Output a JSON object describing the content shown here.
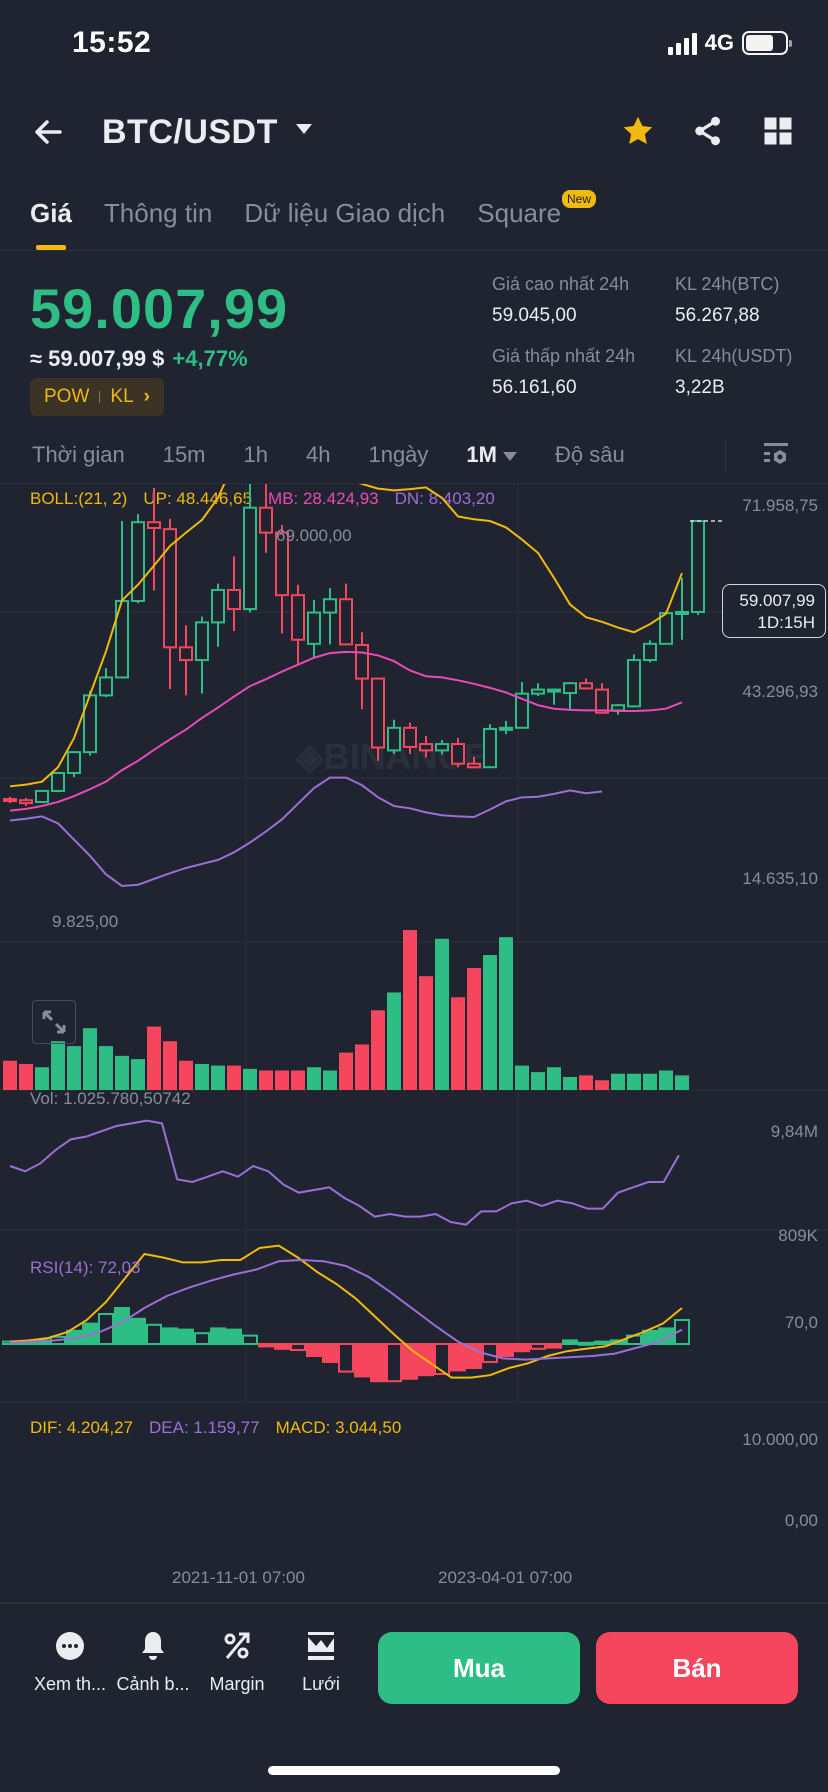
{
  "status_bar": {
    "time": "15:52",
    "network": "4G"
  },
  "header": {
    "pair": "BTC/USDT",
    "icons": [
      "back-arrow-icon",
      "caret-down-icon",
      "star-icon",
      "share-icon",
      "grid-icon"
    ]
  },
  "tabs": [
    {
      "label": "Giá",
      "active": true
    },
    {
      "label": "Thông tin",
      "active": false
    },
    {
      "label": "Dữ liệu Giao dịch",
      "active": false
    },
    {
      "label": "Square",
      "active": false,
      "badge": "New"
    }
  ],
  "price": {
    "last": "59.007,99",
    "usd_equiv": "≈ 59.007,99 $",
    "change_pct": "+4,77%",
    "tags": [
      "POW",
      "KL"
    ]
  },
  "stats": {
    "high_label": "Giá cao nhất 24h",
    "high_value": "59.045,00",
    "low_label": "Giá thấp nhất 24h",
    "low_value": "56.161,60",
    "vol_btc_label": "KL 24h(BTC)",
    "vol_btc_value": "56.267,88",
    "vol_usdt_label": "KL 24h(USDT)",
    "vol_usdt_value": "3,22B"
  },
  "intervals": {
    "items": [
      {
        "label": "Thời gian",
        "active": false
      },
      {
        "label": "15m",
        "active": false
      },
      {
        "label": "1h",
        "active": false
      },
      {
        "label": "4h",
        "active": false
      },
      {
        "label": "1ngày",
        "active": false
      },
      {
        "label": "1M",
        "active": true,
        "dropdown": true
      },
      {
        "label": "Độ sâu",
        "active": false
      }
    ]
  },
  "indicators": {
    "boll": {
      "label": "BOLL:(21, 2)",
      "up": "UP: 48.446,65",
      "mb": "MB: 28.424,93",
      "dn": "DN: 8.403,20"
    },
    "vol": {
      "label": "Vol: 1.025.780,50742"
    },
    "rsi": {
      "label": "RSI(14): 72,03"
    },
    "macd": {
      "dif": "DIF: 4.204,27",
      "dea": "DEA: 1.159,77",
      "macd": "MACD: 3.044,50"
    }
  },
  "axes": {
    "price_top": "71.958,75",
    "price_mid": "43.296,93",
    "price_low": "14.635,10",
    "high_marker": "69.000,00",
    "low_marker": "9.825,00",
    "current_price": "59.007,99",
    "countdown": "1D:15H",
    "vol_top": "9,84M",
    "vol_bottom": "809K",
    "rsi_level": "70,0",
    "macd_top": "10.000,00",
    "macd_zero": "0,00",
    "time_labels": [
      "2021-11-01 07:00",
      "2023-04-01 07:00"
    ]
  },
  "colors": {
    "up": "#2ebd85",
    "down": "#f6465d",
    "boll_up": "#f0b90b",
    "boll_mb": "#e84bb5",
    "boll_dn": "#9b6fd6",
    "accent": "#f0b90b",
    "bg": "#1f2430"
  },
  "chart_data": {
    "type": "candlestick",
    "interval": "1M",
    "candles": [
      {
        "o": 11,
        "h": 11.4,
        "l": 10.3,
        "c": 10.8
      },
      {
        "o": 10.8,
        "h": 11.2,
        "l": 9.8,
        "c": 10.3
      },
      {
        "o": 10.5,
        "h": 12.6,
        "l": 10.3,
        "c": 12.4
      },
      {
        "o": 12.4,
        "h": 15.6,
        "l": 12.2,
        "c": 15.5
      },
      {
        "o": 15.5,
        "h": 19.3,
        "l": 14.8,
        "c": 19.1
      },
      {
        "o": 19.1,
        "h": 29.7,
        "l": 18.5,
        "c": 28.9
      },
      {
        "o": 28.9,
        "h": 33.6,
        "l": 28.6,
        "c": 32.0
      },
      {
        "o": 32.0,
        "h": 59.0,
        "l": 32.0,
        "c": 45.2
      },
      {
        "o": 45.2,
        "h": 60.2,
        "l": 44.8,
        "c": 58.8
      },
      {
        "o": 58.8,
        "h": 64.7,
        "l": 47.0,
        "c": 57.8
      },
      {
        "o": 57.6,
        "h": 59.4,
        "l": 30.0,
        "c": 37.2
      },
      {
        "o": 37.2,
        "h": 41.0,
        "l": 28.9,
        "c": 35.0
      },
      {
        "o": 35.0,
        "h": 42.5,
        "l": 29.2,
        "c": 41.5
      },
      {
        "o": 41.5,
        "h": 48.2,
        "l": 37.3,
        "c": 47.1
      },
      {
        "o": 47.1,
        "h": 52.9,
        "l": 40.0,
        "c": 43.8
      },
      {
        "o": 43.8,
        "h": 67.0,
        "l": 43.2,
        "c": 61.3
      },
      {
        "o": 61.3,
        "h": 69.0,
        "l": 53.5,
        "c": 57.0
      },
      {
        "o": 57.0,
        "h": 58.3,
        "l": 39.6,
        "c": 46.2
      },
      {
        "o": 46.2,
        "h": 48.0,
        "l": 34.3,
        "c": 38.5
      },
      {
        "o": 37.8,
        "h": 45.4,
        "l": 35.5,
        "c": 43.2
      },
      {
        "o": 43.2,
        "h": 47.4,
        "l": 37.7,
        "c": 45.5
      },
      {
        "o": 45.5,
        "h": 48.2,
        "l": 37.6,
        "c": 37.7
      },
      {
        "o": 37.6,
        "h": 39.8,
        "l": 26.5,
        "c": 31.8
      },
      {
        "o": 31.8,
        "h": 31.8,
        "l": 17.6,
        "c": 19.9
      },
      {
        "o": 19.4,
        "h": 24.7,
        "l": 18.8,
        "c": 23.3
      },
      {
        "o": 23.3,
        "h": 24.2,
        "l": 18.8,
        "c": 20.0
      },
      {
        "o": 20.5,
        "h": 21.9,
        "l": 18.2,
        "c": 19.4
      },
      {
        "o": 19.4,
        "h": 21.2,
        "l": 18.7,
        "c": 20.5
      },
      {
        "o": 20.5,
        "h": 21.6,
        "l": 16.5,
        "c": 17.1
      },
      {
        "o": 17.1,
        "h": 18.3,
        "l": 16.9,
        "c": 16.5
      },
      {
        "o": 16.5,
        "h": 23.9,
        "l": 16.5,
        "c": 23.1
      },
      {
        "o": 23.1,
        "h": 24.5,
        "l": 22.2,
        "c": 23.3
      },
      {
        "o": 23.3,
        "h": 31.2,
        "l": 24.4,
        "c": 29.2
      },
      {
        "o": 29.2,
        "h": 31.0,
        "l": 28.8,
        "c": 29.9
      },
      {
        "o": 29.9,
        "h": 30.1,
        "l": 27.3,
        "c": 29.9
      },
      {
        "o": 29.3,
        "h": 31.2,
        "l": 26.5,
        "c": 31.0
      },
      {
        "o": 31.0,
        "h": 31.8,
        "l": 29.9,
        "c": 30.1
      },
      {
        "o": 29.9,
        "h": 31.0,
        "l": 27.5,
        "c": 25.9
      },
      {
        "o": 26.3,
        "h": 27.4,
        "l": 25.6,
        "c": 27.2
      },
      {
        "o": 27.0,
        "h": 36.0,
        "l": 26.8,
        "c": 35.0
      },
      {
        "o": 35.0,
        "h": 38.4,
        "l": 34.6,
        "c": 37.8
      },
      {
        "o": 37.8,
        "h": 43.4,
        "l": 40.2,
        "c": 43.1
      },
      {
        "o": 43.1,
        "h": 49.2,
        "l": 38.5,
        "c": 43.3
      },
      {
        "o": 43.3,
        "h": 59.0,
        "l": 42.8,
        "c": 59.0
      }
    ],
    "boll_up": [
      13.2,
      13.5,
      14.0,
      16.5,
      21.5,
      29.0,
      36.5,
      45.3,
      48.0,
      51.3,
      54.7,
      57.0,
      59.2,
      63.0,
      69.2,
      70.0,
      70.2,
      70.0,
      69.5,
      68.5,
      67.4,
      66.3,
      65.4,
      64.6,
      64.3,
      64.5,
      64.8,
      63.0,
      59.8,
      59.3,
      59.0,
      57.9,
      55.8,
      53.5,
      49.2,
      44.6,
      42.4,
      41.6,
      40.6,
      39.8,
      41.2,
      43.0,
      50.0
    ],
    "boll_mb": [
      9.0,
      9.3,
      9.8,
      10.5,
      11.5,
      12.7,
      14.0,
      16.0,
      17.6,
      19.5,
      21.3,
      23.0,
      25.0,
      26.8,
      28.7,
      30.5,
      31.7,
      33.0,
      34.2,
      35.4,
      36.2,
      36.4,
      36.3,
      35.8,
      34.8,
      33.2,
      32.2,
      32.0,
      31.5,
      30.9,
      30.2,
      29.4,
      28.3,
      27.2,
      26.6,
      26.4,
      26.3,
      26.3,
      26.2,
      26.2,
      26.3,
      26.6,
      27.7
    ],
    "boll_dn": [
      7.3,
      7.6,
      8.0,
      6.8,
      4.0,
      1.2,
      -2.0,
      -4.0,
      -3.8,
      -2.8,
      -1.8,
      -0.9,
      -0.2,
      0.5,
      1.8,
      3.5,
      5.4,
      7.5,
      10.2,
      12.9,
      14.7,
      14.7,
      13.4,
      11.3,
      9.8,
      9.4,
      8.7,
      8.2,
      8.0,
      7.9,
      9.2,
      10.6,
      11.3,
      11.4,
      11.9,
      12.5,
      12.0,
      12.3
    ],
    "volume_m": [
      1.8,
      1.6,
      1.4,
      3.0,
      2.7,
      3.8,
      2.7,
      2.1,
      1.9,
      3.9,
      3.0,
      1.8,
      1.6,
      1.5,
      1.5,
      1.3,
      1.2,
      1.2,
      1.2,
      1.4,
      1.2,
      2.3,
      2.8,
      4.9,
      6.0,
      9.84,
      7.0,
      9.3,
      5.7,
      7.5,
      8.3,
      9.4,
      1.5,
      1.1,
      1.4,
      0.8,
      0.9,
      0.6,
      1.0,
      1.0,
      1.0,
      1.2,
      0.9
    ],
    "rsi": [
      62,
      60,
      63,
      68,
      72,
      73,
      75,
      77,
      78,
      79,
      78,
      57,
      56,
      58,
      60,
      58,
      62,
      60,
      55,
      52,
      53,
      54,
      50,
      47,
      43,
      44,
      43,
      43,
      44,
      41,
      40,
      45,
      45,
      48,
      49,
      47,
      49,
      48,
      46,
      46,
      52,
      54,
      56,
      56,
      66
    ],
    "macd_dif": [
      0.2,
      0.3,
      0.5,
      1.0,
      2.0,
      3.5,
      5.5,
      7.5,
      7.2,
      6.8,
      6.8,
      7.0,
      7.0,
      8.0,
      8.2,
      7.2,
      6.0,
      5.0,
      3.8,
      2.3,
      0.8,
      -0.6,
      -1.7,
      -2.8,
      -2.8,
      -2.6,
      -2.0,
      -1.6,
      -1.0,
      -0.6,
      -0.4,
      -0.2,
      0.4,
      1.0,
      1.7,
      3.0
    ],
    "macd_dea": [
      0.1,
      0.2,
      0.3,
      0.5,
      1.0,
      1.8,
      3.0,
      4.0,
      4.7,
      5.3,
      5.8,
      6.2,
      6.9,
      7.0,
      6.9,
      6.5,
      5.6,
      4.3,
      2.9,
      1.5,
      0.2,
      -0.7,
      -1.2,
      -1.3,
      -1.2,
      -1.1,
      -1.0,
      -0.8,
      -0.3,
      0.2,
      1.2
    ],
    "macd_hist": [
      0.2,
      0.2,
      0.3,
      0.6,
      1.1,
      1.7,
      2.5,
      3.0,
      2.1,
      1.6,
      1.3,
      1.2,
      0.9,
      1.3,
      1.2,
      0.7,
      -0.2,
      -0.4,
      -0.5,
      -1.0,
      -1.5,
      -2.3,
      -2.7,
      -3.1,
      -3.1,
      -2.9,
      -2.6,
      -2.5,
      -2.2,
      -2.0,
      -1.5,
      -1.0,
      -0.6,
      -0.4,
      -0.3,
      0.3,
      0.1,
      0.2,
      0.3,
      0.7,
      1.1,
      1.3,
      2.0
    ],
    "price_axis": {
      "min": 0,
      "max": 71.96,
      "unit": "thousand USDT",
      "labels": [
        71958.75,
        43296.93,
        14635.1
      ]
    },
    "x_labels": [
      "2021-11-01 07:00",
      "2023-04-01 07:00"
    ]
  },
  "bottom_bar": {
    "items": [
      {
        "label": "Xem th...",
        "icon": "more-icon"
      },
      {
        "label": "Cảnh b...",
        "icon": "bell-icon"
      },
      {
        "label": "Margin",
        "icon": "percent-icon"
      },
      {
        "label": "Lưới",
        "icon": "grid-trading-icon"
      }
    ],
    "buy_label": "Mua",
    "sell_label": "Bán"
  }
}
